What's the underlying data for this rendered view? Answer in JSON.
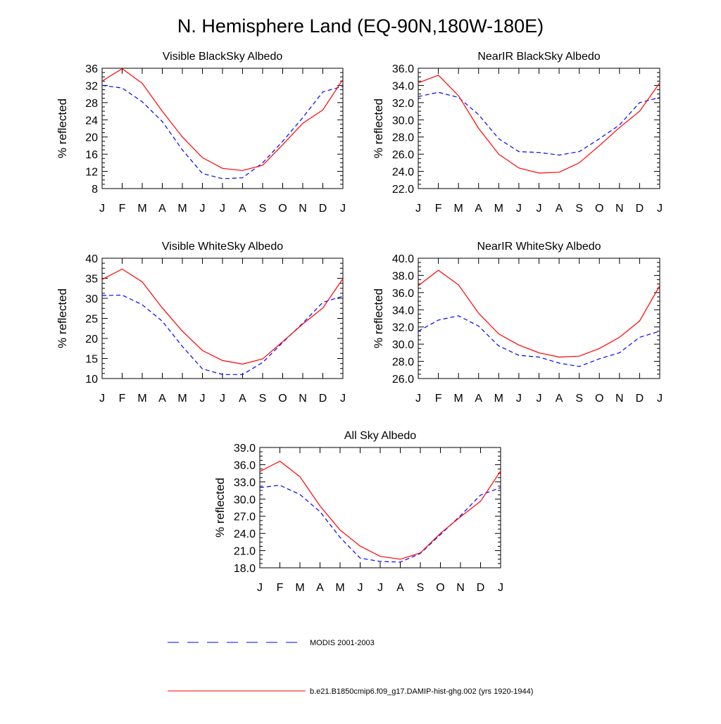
{
  "title": "N. Hemisphere Land (EQ-90N,180W-180E)",
  "legend": {
    "items": [
      {
        "label": "MODIS 2001-2003",
        "color": "#0000ff",
        "dash": "dashed"
      },
      {
        "label": "b.e21.B1850cmip6.f09_g17.DAMIP-hist-ghg.002 (yrs 1920-1944)",
        "color": "#ff0000",
        "dash": "solid"
      }
    ]
  },
  "chart_data": [
    {
      "type": "line",
      "title": "Visible BlackSky Albedo",
      "ylabel": "% reflected",
      "categories": [
        "J",
        "F",
        "M",
        "A",
        "M",
        "J",
        "J",
        "A",
        "S",
        "O",
        "N",
        "D",
        "J"
      ],
      "ylim": [
        8,
        36
      ],
      "yticks": [
        "8",
        "12",
        "16",
        "20",
        "24",
        "28",
        "32",
        "36"
      ],
      "series": [
        {
          "name": "MODIS 2001-2003",
          "color": "#0000ff",
          "dash": true,
          "values": [
            32.0,
            31.4,
            28.2,
            23.6,
            17.0,
            11.5,
            10.3,
            10.5,
            14.0,
            19.0,
            24.5,
            30.5,
            31.8
          ]
        },
        {
          "name": "b.e21.B1850cmip6.f09_g17.DAMIP-hist-ghg.002 (yrs 1920-1944)",
          "color": "#ff0000",
          "dash": false,
          "values": [
            33.0,
            35.9,
            32.5,
            26.0,
            20.0,
            15.2,
            12.7,
            12.2,
            13.4,
            18.2,
            23.2,
            26.3,
            33.4
          ]
        }
      ]
    },
    {
      "type": "line",
      "title": "NearIR BlackSky Albedo",
      "ylabel": "% reflected",
      "categories": [
        "J",
        "F",
        "M",
        "A",
        "M",
        "J",
        "J",
        "A",
        "S",
        "O",
        "N",
        "D",
        "J"
      ],
      "ylim": [
        22,
        36
      ],
      "yticks": [
        "22.0",
        "24.0",
        "26.0",
        "28.0",
        "30.0",
        "32.0",
        "34.0",
        "36.0"
      ],
      "series": [
        {
          "name": "MODIS 2001-2003",
          "color": "#0000ff",
          "dash": true,
          "values": [
            32.7,
            33.2,
            32.6,
            30.6,
            27.8,
            26.3,
            26.2,
            25.9,
            26.3,
            27.8,
            29.4,
            32.0,
            32.6
          ]
        },
        {
          "name": "b.e21.B1850cmip6.f09_g17.DAMIP-hist-ghg.002 (yrs 1920-1944)",
          "color": "#ff0000",
          "dash": false,
          "values": [
            34.3,
            35.2,
            32.8,
            29.0,
            26.0,
            24.4,
            23.8,
            23.9,
            25.0,
            27.0,
            29.1,
            31.0,
            34.3
          ]
        }
      ]
    },
    {
      "type": "line",
      "title": "Visible WhiteSky Albedo",
      "ylabel": "% reflected",
      "categories": [
        "J",
        "F",
        "M",
        "A",
        "M",
        "J",
        "J",
        "A",
        "S",
        "O",
        "N",
        "D",
        "J"
      ],
      "ylim": [
        10,
        40
      ],
      "yticks": [
        "10",
        "15",
        "20",
        "25",
        "30",
        "35",
        "40"
      ],
      "series": [
        {
          "name": "MODIS 2001-2003",
          "color": "#0000ff",
          "dash": true,
          "values": [
            30.7,
            30.8,
            28.4,
            24.3,
            18.0,
            12.4,
            11.0,
            11.0,
            14.0,
            19.0,
            23.8,
            29.0,
            30.5
          ]
        },
        {
          "name": "b.e21.B1850cmip6.f09_g17.DAMIP-hist-ghg.002 (yrs 1920-1944)",
          "color": "#ff0000",
          "dash": false,
          "values": [
            34.7,
            37.3,
            34.1,
            27.6,
            21.8,
            17.0,
            14.5,
            13.6,
            14.9,
            19.2,
            23.6,
            27.6,
            34.9
          ]
        }
      ]
    },
    {
      "type": "line",
      "title": "NearIR WhiteSky Albedo",
      "ylabel": "% reflected",
      "categories": [
        "J",
        "F",
        "M",
        "A",
        "M",
        "J",
        "J",
        "A",
        "S",
        "O",
        "N",
        "D",
        "J"
      ],
      "ylim": [
        26,
        40
      ],
      "yticks": [
        "26.0",
        "28.0",
        "30.0",
        "32.0",
        "34.0",
        "36.0",
        "38.0",
        "40.0"
      ],
      "series": [
        {
          "name": "MODIS 2001-2003",
          "color": "#0000ff",
          "dash": true,
          "values": [
            31.5,
            32.8,
            33.3,
            32.1,
            29.8,
            28.7,
            28.5,
            27.8,
            27.4,
            28.3,
            29.0,
            30.8,
            31.5
          ]
        },
        {
          "name": "b.e21.B1850cmip6.f09_g17.DAMIP-hist-ghg.002 (yrs 1920-1944)",
          "color": "#ff0000",
          "dash": false,
          "values": [
            36.8,
            38.6,
            36.9,
            33.6,
            31.2,
            29.9,
            29.0,
            28.5,
            28.6,
            29.5,
            30.8,
            32.7,
            36.8
          ]
        }
      ]
    },
    {
      "type": "line",
      "title": "All Sky Albedo",
      "ylabel": "% reflected",
      "categories": [
        "J",
        "F",
        "M",
        "A",
        "M",
        "J",
        "J",
        "A",
        "S",
        "O",
        "N",
        "D",
        "J"
      ],
      "ylim": [
        18,
        39
      ],
      "yticks": [
        "18.0",
        "21.0",
        "24.0",
        "27.0",
        "30.0",
        "33.0",
        "36.0",
        "39.0"
      ],
      "series": [
        {
          "name": "MODIS 2001-2003",
          "color": "#0000ff",
          "dash": true,
          "values": [
            32.0,
            32.4,
            30.8,
            27.8,
            23.3,
            19.7,
            19.1,
            19.0,
            20.5,
            23.8,
            27.1,
            30.7,
            32.0
          ]
        },
        {
          "name": "b.e21.B1850cmip6.f09_g17.DAMIP-hist-ghg.002 (yrs 1920-1944)",
          "color": "#ff0000",
          "dash": false,
          "values": [
            34.8,
            36.6,
            33.9,
            28.8,
            24.6,
            21.8,
            20.0,
            19.5,
            20.6,
            24.0,
            26.9,
            29.6,
            34.9
          ]
        }
      ]
    }
  ]
}
